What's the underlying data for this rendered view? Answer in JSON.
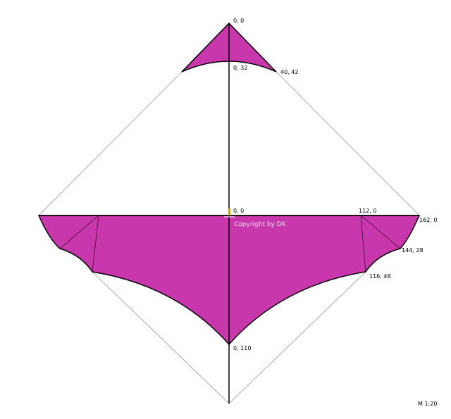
{
  "colors": {
    "fill": "#c837ac",
    "outline": "#000000",
    "guide": "#888888",
    "marker": "#b8a020"
  },
  "points": [
    {
      "label": "0, 0",
      "name": "top-apex"
    },
    {
      "label": "0, 32",
      "name": "top-arc-center"
    },
    {
      "label": "40, 42",
      "name": "top-right-corner"
    },
    {
      "label": "0, 0",
      "name": "origin"
    },
    {
      "label": "112, 0",
      "name": "spar-point"
    },
    {
      "label": "162, 0",
      "name": "right-tip"
    },
    {
      "label": "144, 28",
      "name": "right-scallop"
    },
    {
      "label": "116, 48",
      "name": "right-lower-corner"
    },
    {
      "label": "0, 110",
      "name": "bottom-center"
    }
  ],
  "copyright": "Copyright by DK",
  "scale": "M 1:20"
}
